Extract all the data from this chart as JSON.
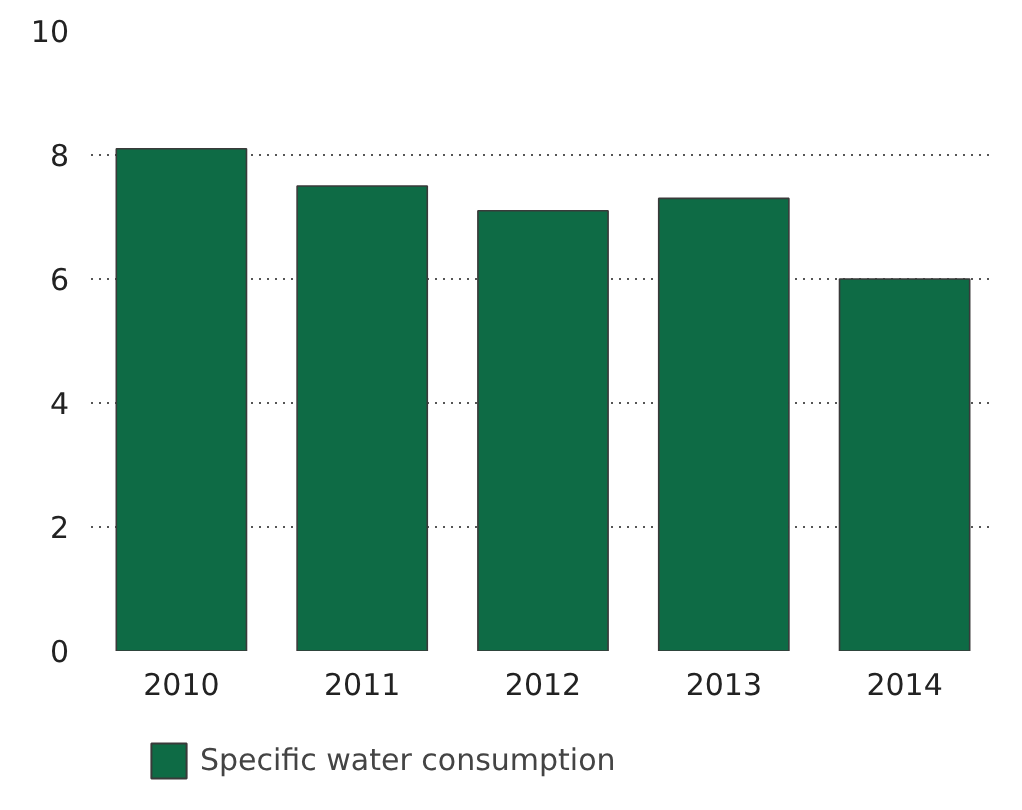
{
  "chart_data": {
    "type": "bar",
    "categories": [
      "2010",
      "2011",
      "2012",
      "2013",
      "2014"
    ],
    "series": [
      {
        "name": "Specific water consumption",
        "color": "#0e6b45",
        "values": [
          8.1,
          7.5,
          7.1,
          7.3,
          6.0
        ]
      }
    ],
    "ylim": [
      0,
      10
    ],
    "yticks": [
      0,
      2,
      4,
      6,
      8,
      10
    ],
    "grid": "y",
    "legend": "bottom left"
  }
}
